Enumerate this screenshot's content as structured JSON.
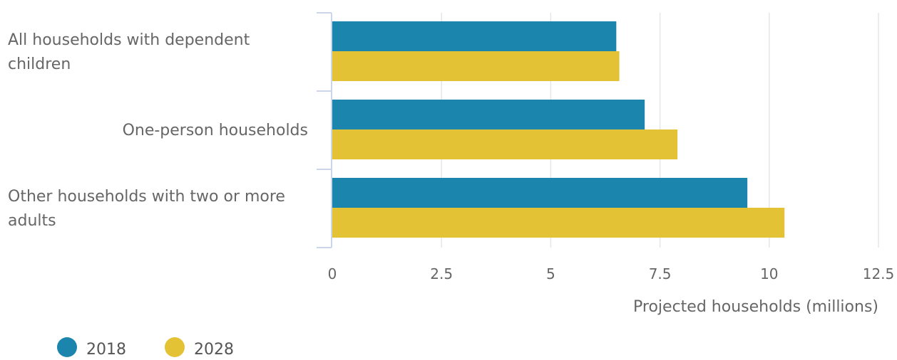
{
  "chart_data": {
    "type": "bar",
    "orientation": "horizontal",
    "categories": [
      "All households with dependent children",
      "One-person households",
      "Other households with two or more adults"
    ],
    "series": [
      {
        "name": "2018",
        "color": "#1b85ad",
        "values": [
          6.5,
          7.15,
          9.5
        ]
      },
      {
        "name": "2028",
        "color": "#e3c235",
        "values": [
          6.57,
          7.9,
          10.35
        ]
      }
    ],
    "xlabel": "Projected households (millions)",
    "ylabel": "",
    "xlim": [
      0,
      12.5
    ],
    "x_ticks": [
      "0",
      "2.5",
      "5",
      "7.5",
      "10",
      "12.5"
    ],
    "grid": "vertical",
    "legend_position": "bottom-left"
  }
}
